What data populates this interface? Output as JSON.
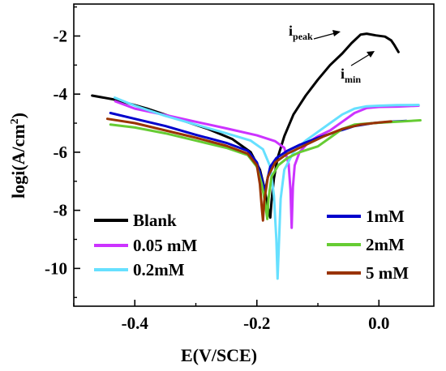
{
  "chart_data": {
    "type": "line",
    "title": "",
    "xlabel": "E(V/SCE)",
    "ylabel_main": "logi(A/cm",
    "ylabel_sup": "2",
    "ylabel_close": ")",
    "xlim": [
      -0.5,
      0.09
    ],
    "ylim": [
      -11.3,
      -0.9
    ],
    "x_ticks": [
      -0.4,
      -0.2,
      0.0
    ],
    "x_tick_labels": [
      "-0.4",
      "-0.2",
      "0.0"
    ],
    "y_ticks": [
      -2,
      -4,
      -6,
      -8,
      -10
    ],
    "y_tick_labels": [
      "-2",
      "-4",
      "-6",
      "-8",
      "-10"
    ],
    "grid": false,
    "legend_placement": "bottom (two groups)",
    "annotations": [
      {
        "main": "i",
        "sub": "peak",
        "x": -0.03,
        "y": -1.9
      },
      {
        "main": "i",
        "sub": "min",
        "x": 0.03,
        "y": -2.6
      }
    ],
    "series": [
      {
        "name": "Blank",
        "color": "#000000",
        "points": [
          [
            -0.47,
            -4.05
          ],
          [
            -0.43,
            -4.2
          ],
          [
            -0.38,
            -4.5
          ],
          [
            -0.33,
            -4.85
          ],
          [
            -0.28,
            -5.2
          ],
          [
            -0.24,
            -5.55
          ],
          [
            -0.21,
            -6.0
          ],
          [
            -0.195,
            -6.6
          ],
          [
            -0.188,
            -7.2
          ],
          [
            -0.182,
            -7.9
          ],
          [
            -0.178,
            -8.25
          ],
          [
            -0.176,
            -7.7
          ],
          [
            -0.172,
            -6.9
          ],
          [
            -0.166,
            -6.2
          ],
          [
            -0.155,
            -5.45
          ],
          [
            -0.14,
            -4.7
          ],
          [
            -0.12,
            -4.05
          ],
          [
            -0.1,
            -3.5
          ],
          [
            -0.08,
            -3.0
          ],
          [
            -0.06,
            -2.6
          ],
          [
            -0.045,
            -2.25
          ],
          [
            -0.03,
            -1.95
          ],
          [
            -0.02,
            -1.92
          ],
          [
            -0.005,
            -1.98
          ],
          [
            0.01,
            -2.02
          ],
          [
            0.02,
            -2.15
          ],
          [
            0.025,
            -2.3
          ],
          [
            0.032,
            -2.55
          ]
        ]
      },
      {
        "name": "0.05 mM",
        "color": "#cc33ff",
        "points": [
          [
            -0.432,
            -4.25
          ],
          [
            -0.4,
            -4.5
          ],
          [
            -0.35,
            -4.72
          ],
          [
            -0.3,
            -4.95
          ],
          [
            -0.25,
            -5.18
          ],
          [
            -0.2,
            -5.42
          ],
          [
            -0.17,
            -5.62
          ],
          [
            -0.155,
            -5.85
          ],
          [
            -0.148,
            -6.4
          ],
          [
            -0.145,
            -7.3
          ],
          [
            -0.143,
            -8.6
          ],
          [
            -0.141,
            -7.2
          ],
          [
            -0.138,
            -6.45
          ],
          [
            -0.13,
            -6.0
          ],
          [
            -0.115,
            -5.65
          ],
          [
            -0.1,
            -5.45
          ],
          [
            -0.08,
            -5.25
          ],
          [
            -0.06,
            -4.95
          ],
          [
            -0.04,
            -4.65
          ],
          [
            -0.02,
            -4.48
          ],
          [
            0.0,
            -4.44
          ],
          [
            0.03,
            -4.43
          ],
          [
            0.065,
            -4.4
          ]
        ]
      },
      {
        "name": "0.2mM",
        "color": "#66e0ff",
        "points": [
          [
            -0.433,
            -4.12
          ],
          [
            -0.4,
            -4.4
          ],
          [
            -0.35,
            -4.75
          ],
          [
            -0.3,
            -5.05
          ],
          [
            -0.25,
            -5.35
          ],
          [
            -0.21,
            -5.6
          ],
          [
            -0.19,
            -5.9
          ],
          [
            -0.178,
            -6.5
          ],
          [
            -0.172,
            -7.5
          ],
          [
            -0.168,
            -9.0
          ],
          [
            -0.166,
            -10.35
          ],
          [
            -0.164,
            -9.2
          ],
          [
            -0.161,
            -7.6
          ],
          [
            -0.155,
            -6.6
          ],
          [
            -0.14,
            -6.0
          ],
          [
            -0.12,
            -5.6
          ],
          [
            -0.1,
            -5.3
          ],
          [
            -0.08,
            -5.0
          ],
          [
            -0.06,
            -4.7
          ],
          [
            -0.04,
            -4.5
          ],
          [
            -0.02,
            -4.42
          ],
          [
            0.0,
            -4.4
          ],
          [
            0.03,
            -4.38
          ],
          [
            0.065,
            -4.37
          ]
        ]
      },
      {
        "name": "1mM",
        "color": "#0000cc",
        "points": [
          [
            -0.44,
            -4.65
          ],
          [
            -0.4,
            -4.85
          ],
          [
            -0.35,
            -5.1
          ],
          [
            -0.3,
            -5.4
          ],
          [
            -0.25,
            -5.68
          ],
          [
            -0.215,
            -5.95
          ],
          [
            -0.2,
            -6.35
          ],
          [
            -0.192,
            -6.9
          ],
          [
            -0.187,
            -7.4
          ],
          [
            -0.183,
            -6.95
          ],
          [
            -0.178,
            -6.5
          ],
          [
            -0.168,
            -6.2
          ],
          [
            -0.15,
            -5.95
          ],
          [
            -0.13,
            -5.75
          ],
          [
            -0.1,
            -5.5
          ],
          [
            -0.07,
            -5.3
          ],
          [
            -0.04,
            -5.1
          ],
          [
            -0.01,
            -5.0
          ],
          [
            0.02,
            -4.95
          ],
          [
            0.045,
            -4.92
          ]
        ]
      },
      {
        "name": "2mM",
        "color": "#66cc33",
        "points": [
          [
            -0.44,
            -5.05
          ],
          [
            -0.4,
            -5.15
          ],
          [
            -0.35,
            -5.35
          ],
          [
            -0.3,
            -5.6
          ],
          [
            -0.25,
            -5.85
          ],
          [
            -0.215,
            -6.1
          ],
          [
            -0.2,
            -6.5
          ],
          [
            -0.192,
            -7.1
          ],
          [
            -0.186,
            -7.8
          ],
          [
            -0.183,
            -8.3
          ],
          [
            -0.181,
            -7.6
          ],
          [
            -0.176,
            -6.85
          ],
          [
            -0.165,
            -6.45
          ],
          [
            -0.15,
            -6.2
          ],
          [
            -0.13,
            -6.0
          ],
          [
            -0.1,
            -5.8
          ],
          [
            -0.08,
            -5.5
          ],
          [
            -0.06,
            -5.2
          ],
          [
            -0.04,
            -5.05
          ],
          [
            -0.01,
            -5.0
          ],
          [
            0.03,
            -4.95
          ],
          [
            0.068,
            -4.9
          ]
        ]
      },
      {
        "name": "5 mM",
        "color": "#993300",
        "points": [
          [
            -0.445,
            -4.85
          ],
          [
            -0.4,
            -5.0
          ],
          [
            -0.35,
            -5.25
          ],
          [
            -0.3,
            -5.5
          ],
          [
            -0.25,
            -5.78
          ],
          [
            -0.215,
            -6.05
          ],
          [
            -0.2,
            -6.45
          ],
          [
            -0.195,
            -7.1
          ],
          [
            -0.192,
            -7.9
          ],
          [
            -0.19,
            -8.35
          ],
          [
            -0.188,
            -7.7
          ],
          [
            -0.182,
            -6.85
          ],
          [
            -0.17,
            -6.35
          ],
          [
            -0.15,
            -6.05
          ],
          [
            -0.12,
            -5.75
          ],
          [
            -0.09,
            -5.45
          ],
          [
            -0.06,
            -5.2
          ],
          [
            -0.03,
            -5.05
          ],
          [
            0.0,
            -4.98
          ],
          [
            0.02,
            -4.94
          ]
        ]
      }
    ]
  }
}
